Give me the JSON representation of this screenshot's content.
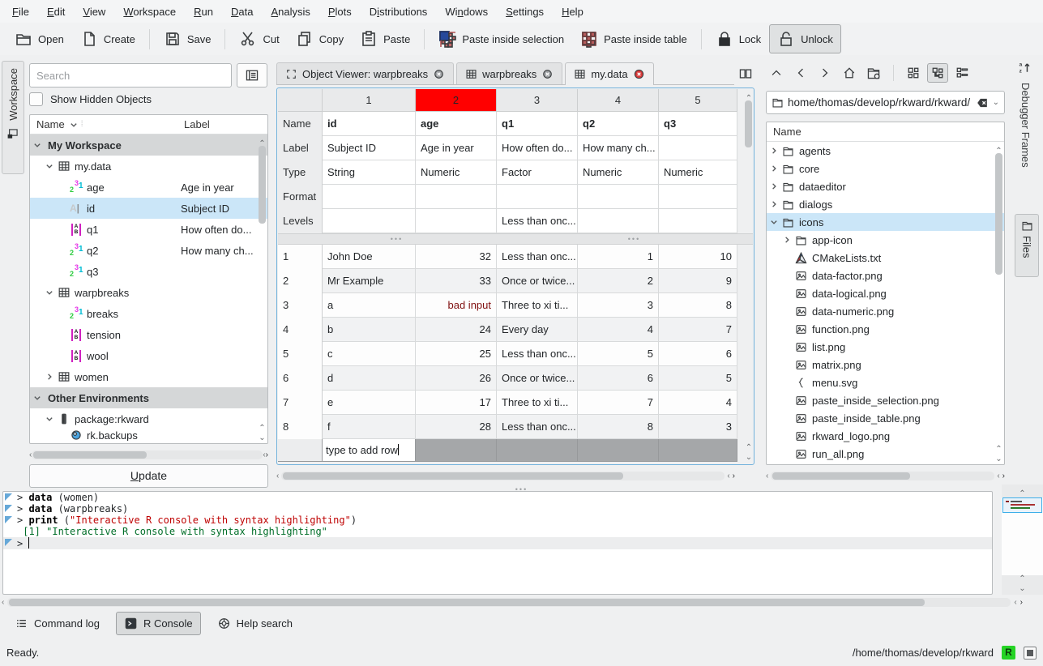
{
  "colors": {
    "accent": "#3daee9",
    "error_red": "#ff0000",
    "console_string": "#bf0303",
    "console_output": "#006e28",
    "table_icon_green": "#18a34f",
    "image_icon_purple": "#9b59b6"
  },
  "menu": {
    "items": [
      {
        "label": "File",
        "mnemonic": 0
      },
      {
        "label": "Edit",
        "mnemonic": 0
      },
      {
        "label": "View",
        "mnemonic": 0
      },
      {
        "label": "Workspace",
        "mnemonic": 0
      },
      {
        "label": "Run",
        "mnemonic": 0
      },
      {
        "label": "Data",
        "mnemonic": 0
      },
      {
        "label": "Analysis",
        "mnemonic": 0
      },
      {
        "label": "Plots",
        "mnemonic": 0
      },
      {
        "label": "Distributions",
        "mnemonic": 1
      },
      {
        "label": "Windows",
        "mnemonic": 2
      },
      {
        "label": "Settings",
        "mnemonic": 0
      },
      {
        "label": "Help",
        "mnemonic": 0
      }
    ]
  },
  "toolbar": {
    "buttons": [
      {
        "id": "open",
        "label": "Open",
        "icon": "open-folder-icon"
      },
      {
        "id": "create",
        "label": "Create",
        "icon": "new-document-icon"
      },
      {
        "id": "sep1",
        "separator": true
      },
      {
        "id": "save",
        "label": "Save",
        "icon": "save-icon"
      },
      {
        "id": "sep2",
        "separator": true
      },
      {
        "id": "cut",
        "label": "Cut",
        "icon": "cut-icon"
      },
      {
        "id": "copy",
        "label": "Copy",
        "icon": "copy-icon"
      },
      {
        "id": "paste",
        "label": "Paste",
        "icon": "paste-icon"
      },
      {
        "id": "sep3",
        "separator": true
      },
      {
        "id": "paste-inside-selection",
        "label": "Paste inside selection",
        "icon": "paste-selection-icon"
      },
      {
        "id": "paste-inside-table",
        "label": "Paste inside table",
        "icon": "paste-table-icon"
      },
      {
        "id": "sep4",
        "separator": true
      },
      {
        "id": "lock",
        "label": "Lock",
        "icon": "lock-icon"
      },
      {
        "id": "unlock",
        "label": "Unlock",
        "icon": "unlock-icon",
        "pressed": true
      }
    ]
  },
  "workspace_panel": {
    "tab_label": "Workspace",
    "search_placeholder": "Search",
    "show_hidden_label": "Show Hidden Objects",
    "columns": {
      "name": "Name",
      "label": "Label"
    },
    "tree": [
      {
        "kind": "section",
        "name": "My Workspace",
        "expanded": true
      },
      {
        "kind": "dataframe",
        "name": "my.data",
        "depth": 1,
        "expanded": true
      },
      {
        "kind": "numeric",
        "name": "age",
        "label": "Age in year",
        "depth": 2
      },
      {
        "kind": "string",
        "name": "id",
        "label": "Subject ID",
        "depth": 2,
        "selected": true
      },
      {
        "kind": "factor",
        "name": "q1",
        "label": "How often do...",
        "depth": 2
      },
      {
        "kind": "numeric",
        "name": "q2",
        "label": "How many ch...",
        "depth": 2
      },
      {
        "kind": "numeric",
        "name": "q3",
        "label": "",
        "depth": 2
      },
      {
        "kind": "dataframe",
        "name": "warpbreaks",
        "depth": 1,
        "expanded": true
      },
      {
        "kind": "numeric",
        "name": "breaks",
        "depth": 2
      },
      {
        "kind": "factor",
        "name": "tension",
        "depth": 2
      },
      {
        "kind": "factor",
        "name": "wool",
        "depth": 2
      },
      {
        "kind": "dataframe",
        "name": "women",
        "depth": 1,
        "expanded": false
      },
      {
        "kind": "section",
        "name": "Other Environments",
        "expanded": true
      },
      {
        "kind": "package",
        "name": "package:rkward",
        "depth": 1,
        "expanded": true
      },
      {
        "kind": "backup",
        "name": "rk.backups",
        "depth": 2,
        "clipped": true
      }
    ],
    "update_label": "Update"
  },
  "center": {
    "tabs": [
      {
        "label": "Object Viewer: warpbreaks",
        "icon": "object-viewer-icon",
        "close": "close-icon"
      },
      {
        "label": "warpbreaks",
        "icon": "table-icon",
        "close": "close-icon"
      },
      {
        "label": "my.data",
        "icon": "table-icon",
        "close": "close-modified-icon",
        "active": true
      }
    ],
    "editor": {
      "columns": [
        "1",
        "2",
        "3",
        "4",
        "5"
      ],
      "selected_column_index": 1,
      "meta_rows": [
        {
          "label": "Name",
          "bold": true,
          "cells": [
            "id",
            "age",
            "q1",
            "q2",
            "q3"
          ]
        },
        {
          "label": "Label",
          "cells": [
            "Subject ID",
            "Age in year",
            "How often do...",
            "How many ch...",
            ""
          ]
        },
        {
          "label": "Type",
          "cells": [
            "String",
            "Numeric",
            "Factor",
            "Numeric",
            "Numeric"
          ]
        },
        {
          "label": "Format",
          "cells": [
            "",
            "",
            "",
            "",
            ""
          ]
        },
        {
          "label": "Levels",
          "cells": [
            "",
            "",
            "Less than onc...",
            "",
            ""
          ]
        }
      ],
      "rows": [
        {
          "n": "1",
          "cells": [
            "John Doe",
            "32",
            "Less than onc...",
            "1",
            "10"
          ]
        },
        {
          "n": "2",
          "cells": [
            "Mr Example",
            "33",
            "Once or twice...",
            "2",
            "9"
          ]
        },
        {
          "n": "3",
          "cells": [
            "a",
            "bad input",
            "Three to xi ti...",
            "3",
            "8"
          ],
          "bad_col": 1
        },
        {
          "n": "4",
          "cells": [
            "b",
            "24",
            "Every day",
            "4",
            "7"
          ]
        },
        {
          "n": "5",
          "cells": [
            "c",
            "25",
            "Less than onc...",
            "5",
            "6"
          ]
        },
        {
          "n": "6",
          "cells": [
            "d",
            "26",
            "Once or twice...",
            "6",
            "5"
          ]
        },
        {
          "n": "7",
          "cells": [
            "e",
            "17",
            "Three to xi ti...",
            "7",
            "4"
          ]
        },
        {
          "n": "8",
          "cells": [
            "f",
            "28",
            "Less than onc...",
            "8",
            "3"
          ]
        }
      ],
      "numeric_columns": [
        1,
        3,
        4
      ],
      "add_row_placeholder": "type to add row"
    }
  },
  "file_panel": {
    "nav_icons": [
      "up-icon",
      "back-icon",
      "forward-icon",
      "home-icon",
      "folder-new-icon"
    ],
    "view_icons": [
      {
        "icon": "icon-view-icon"
      },
      {
        "icon": "tree-view-icon",
        "pressed": true
      },
      {
        "icon": "detail-view-icon"
      }
    ],
    "path": "home/thomas/develop/rkward/rkward/",
    "header": "Name",
    "items": [
      {
        "name": "agents",
        "icon": "folder-icon",
        "depth": 1,
        "expander": "right"
      },
      {
        "name": "core",
        "icon": "folder-icon",
        "depth": 1,
        "expander": "right"
      },
      {
        "name": "dataeditor",
        "icon": "folder-icon",
        "depth": 1,
        "expander": "right"
      },
      {
        "name": "dialogs",
        "icon": "folder-icon",
        "depth": 1,
        "expander": "right"
      },
      {
        "name": "icons",
        "icon": "folder-icon",
        "depth": 1,
        "expander": "down",
        "selected": true
      },
      {
        "name": "app-icon",
        "icon": "folder-icon",
        "depth": 2,
        "expander": "right"
      },
      {
        "name": "CMakeLists.txt",
        "icon": "cmake-icon",
        "depth": 2
      },
      {
        "name": "data-factor.png",
        "icon": "image-icon",
        "depth": 2
      },
      {
        "name": "data-logical.png",
        "icon": "image-icon",
        "depth": 2
      },
      {
        "name": "data-numeric.png",
        "icon": "image-icon",
        "depth": 2
      },
      {
        "name": "function.png",
        "icon": "image-icon",
        "depth": 2
      },
      {
        "name": "list.png",
        "icon": "image-icon",
        "depth": 2
      },
      {
        "name": "matrix.png",
        "icon": "image-icon",
        "depth": 2
      },
      {
        "name": "menu.svg",
        "icon": "svg-icon",
        "depth": 2
      },
      {
        "name": "paste_inside_selection.png",
        "icon": "image-icon",
        "depth": 2
      },
      {
        "name": "paste_inside_table.png",
        "icon": "image-icon",
        "depth": 2
      },
      {
        "name": "rkward_logo.png",
        "icon": "image-icon",
        "depth": 2
      },
      {
        "name": "run_all.png",
        "icon": "image-icon",
        "depth": 2
      }
    ]
  },
  "right_edge": {
    "sort_icon": "sort-az-icon",
    "tabs": [
      {
        "label": "Debugger Frames"
      },
      {
        "label": "Files",
        "icon": "folder-icon",
        "active": true
      }
    ]
  },
  "console": {
    "lines": [
      {
        "marker": true,
        "segments": [
          {
            "t": "> ",
            "c": ""
          },
          {
            "t": "data",
            "c": "kw"
          },
          {
            "t": " (women)",
            "c": ""
          }
        ]
      },
      {
        "marker": true,
        "segments": [
          {
            "t": "> ",
            "c": ""
          },
          {
            "t": "data",
            "c": "kw"
          },
          {
            "t": " (warpbreaks)",
            "c": ""
          }
        ]
      },
      {
        "marker": true,
        "segments": [
          {
            "t": "> ",
            "c": ""
          },
          {
            "t": "print",
            "c": "kw"
          },
          {
            "t": " (",
            "c": ""
          },
          {
            "t": "\"Interactive R console with syntax highlighting\"",
            "c": "str"
          },
          {
            "t": ")",
            "c": ""
          }
        ]
      },
      {
        "marker": false,
        "segments": [
          {
            "t": " [1] \"Interactive R console with syntax highlighting\"",
            "c": "out"
          }
        ]
      },
      {
        "marker": true,
        "current": true,
        "cursor": true,
        "segments": [
          {
            "t": "> ",
            "c": ""
          }
        ]
      }
    ]
  },
  "toolviews": {
    "buttons": [
      {
        "label": "Command log",
        "icon": "command-log-icon"
      },
      {
        "label": "R Console",
        "icon": "r-console-icon",
        "pressed": true
      },
      {
        "label": "Help search",
        "icon": "help-search-icon"
      }
    ]
  },
  "status": {
    "message": "Ready.",
    "path": "/home/thomas/develop/rkward",
    "r_badge": "R"
  }
}
